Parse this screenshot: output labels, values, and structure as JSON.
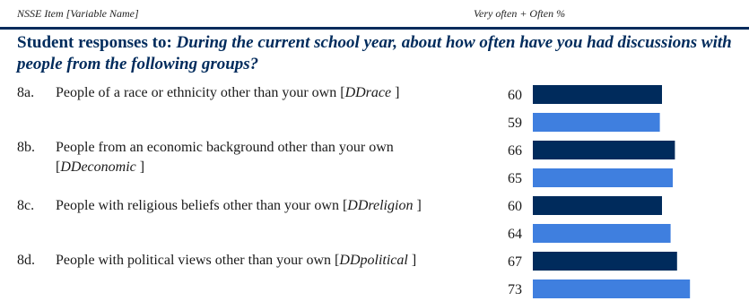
{
  "header": {
    "left": "NSSE Item [Variable Name]",
    "right": "Very often + Often %"
  },
  "title": {
    "prefix": "Student responses to: ",
    "question": "During the current school year, about how often have you had discussions with people from the following groups?"
  },
  "colors": {
    "series_dark": "#002b5c",
    "series_light": "#3f7fdf",
    "title": "#002b5c"
  },
  "items": [
    {
      "code": "8a.",
      "text": "People of a race or ethnicity other than your own [",
      "var": "DDrace",
      "close": " ]"
    },
    {
      "code": "8b.",
      "text": "People from an economic background other than your own [",
      "var": "DDeconomic",
      "close": " ]"
    },
    {
      "code": "8c.",
      "text": "People with religious beliefs other than your own [",
      "var": "DDreligion",
      "close": " ]"
    },
    {
      "code": "8d.",
      "text": "People with political views other than your own [",
      "var": "DDpolitical",
      "close": " ]"
    }
  ],
  "chart_data": {
    "type": "bar",
    "orientation": "horizontal",
    "categories": [
      "8a.",
      "8b.",
      "8c.",
      "8d."
    ],
    "series": [
      {
        "values": [
          60,
          66,
          60,
          67
        ]
      },
      {
        "values": [
          59,
          65,
          64,
          73
        ]
      }
    ],
    "xlim": [
      0,
      100
    ],
    "grid": false
  }
}
